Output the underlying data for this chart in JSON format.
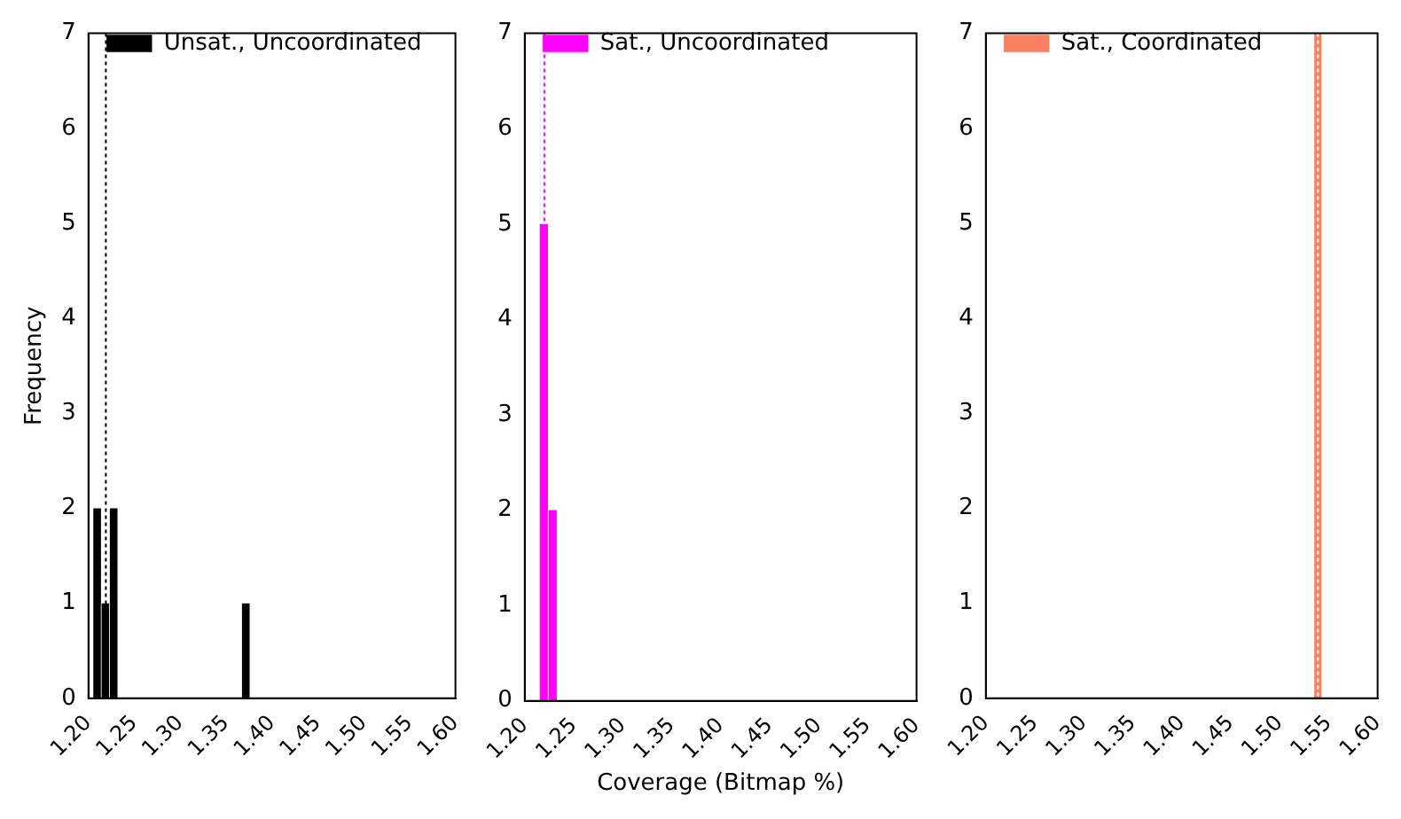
{
  "chart_data": [
    {
      "type": "histogram",
      "ylabel": "Frequency",
      "bins": [
        1.205,
        1.214,
        1.223,
        1.232,
        1.241,
        1.25,
        1.259,
        1.268,
        1.277,
        1.286,
        1.295,
        1.304,
        1.313,
        1.322,
        1.331,
        1.34,
        1.349,
        1.358,
        1.367,
        1.376
      ],
      "series": [
        {
          "name": "Unsat., Uncoordinated",
          "color": "#000000",
          "values": [
            2,
            1,
            2,
            0,
            0,
            0,
            0,
            0,
            0,
            0,
            0,
            0,
            0,
            0,
            0,
            0,
            0,
            0,
            1
          ]
        }
      ],
      "ref_lines": [
        {
          "axis": "x",
          "value": 1.219,
          "color": "#000000",
          "line_style": "dotted"
        }
      ],
      "xlim": [
        1.2,
        1.6
      ],
      "xticks": [
        {
          "value": 1.2,
          "label": "1.20"
        },
        {
          "value": 1.25,
          "label": "1.25"
        },
        {
          "value": 1.3,
          "label": "1.30"
        },
        {
          "value": 1.35,
          "label": "1.35"
        },
        {
          "value": 1.4,
          "label": "1.40"
        },
        {
          "value": 1.45,
          "label": "1.45"
        },
        {
          "value": 1.5,
          "label": "1.50"
        },
        {
          "value": 1.55,
          "label": "1.55"
        },
        {
          "value": 1.6,
          "label": "1.60"
        }
      ],
      "ylim": [
        0,
        7
      ],
      "yticks": [
        0,
        1,
        2,
        3,
        4,
        5,
        6,
        7
      ],
      "grid": false,
      "legend": "top left"
    },
    {
      "type": "histogram",
      "xlabel": "Coverage (Bitmap %)",
      "bins": [
        1.215,
        1.224,
        1.233
      ],
      "series": [
        {
          "name": "Sat., Uncoordinated",
          "color": "#ff00ff",
          "values": [
            5,
            2
          ]
        }
      ],
      "ref_lines": [
        {
          "axis": "x",
          "value": 1.22,
          "color": "#ff00ff",
          "line_style": "dotted"
        }
      ],
      "xlim": [
        1.2,
        1.6
      ],
      "xticks": [
        {
          "value": 1.2,
          "label": "1.20"
        },
        {
          "value": 1.25,
          "label": "1.25"
        },
        {
          "value": 1.3,
          "label": "1.30"
        },
        {
          "value": 1.35,
          "label": "1.35"
        },
        {
          "value": 1.4,
          "label": "1.40"
        },
        {
          "value": 1.45,
          "label": "1.45"
        },
        {
          "value": 1.5,
          "label": "1.50"
        },
        {
          "value": 1.55,
          "label": "1.55"
        },
        {
          "value": 1.6,
          "label": "1.60"
        }
      ],
      "ylim": [
        0,
        7
      ],
      "yticks": [
        0,
        1,
        2,
        3,
        4,
        5,
        6,
        7
      ],
      "grid": false,
      "legend": "top left"
    },
    {
      "type": "histogram",
      "bins": [
        1.535,
        1.543
      ],
      "series": [
        {
          "name": "Sat., Coordinated",
          "color": "#fa8062",
          "values": [
            7
          ]
        }
      ],
      "ref_lines": [
        {
          "axis": "x",
          "value": 1.539,
          "color": "#ffffff",
          "line_style": "dotted"
        }
      ],
      "xlim": [
        1.2,
        1.6
      ],
      "xticks": [
        {
          "value": 1.2,
          "label": "1.20"
        },
        {
          "value": 1.25,
          "label": "1.25"
        },
        {
          "value": 1.3,
          "label": "1.30"
        },
        {
          "value": 1.35,
          "label": "1.35"
        },
        {
          "value": 1.4,
          "label": "1.40"
        },
        {
          "value": 1.45,
          "label": "1.45"
        },
        {
          "value": 1.5,
          "label": "1.50"
        },
        {
          "value": 1.55,
          "label": "1.55"
        },
        {
          "value": 1.6,
          "label": "1.60"
        }
      ],
      "ylim": [
        0,
        7
      ],
      "yticks": [
        0,
        1,
        2,
        3,
        4,
        5,
        6,
        7
      ],
      "grid": false,
      "legend": "top left"
    }
  ]
}
